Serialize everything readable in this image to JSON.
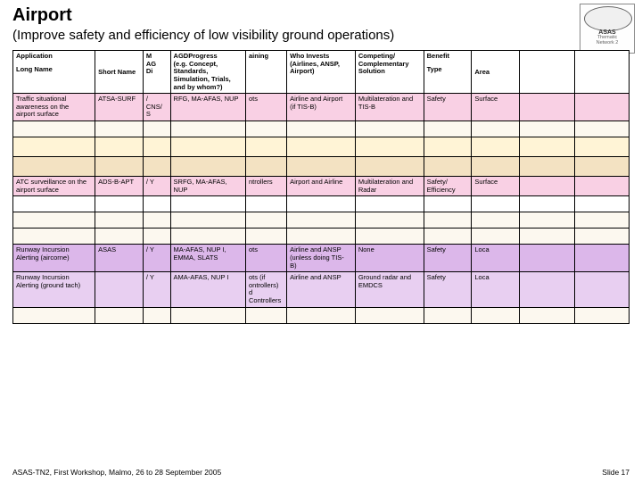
{
  "logo": {
    "main": "ASAS",
    "sub1": "Thematic",
    "sub2": "Network 2"
  },
  "title": "Airport",
  "subtitle": "(Improve safety and efficiency of low visibility ground operations)",
  "columns": {
    "app": "Application",
    "long": "Long Name",
    "short": "Short Name",
    "mag": "M\nAG\nDi",
    "prog": "AGDProgress\n(e.g. Concept,\nStandards,\nSimulation, Trials,\nand by whom?)",
    "train": "aining",
    "who": "Who Invests\n(Airlines, ANSP,\nAirport)",
    "comp": "Competing/\nComplementary\nSolution",
    "benefit": "Benefit",
    "type": "Type",
    "area": "Area",
    "x1": "",
    "x2": ""
  },
  "rows": [
    {
      "cls": "row-pink",
      "long": "Traffic situational\nawareness on the\nairport surface",
      "short": "ATSA-SURF",
      "mag": "/\nCNS/\nS",
      "prog": "RFG, MA-AFAS, NUP",
      "train": "ots",
      "who": "Airline and Airport\n(if TIS-B)",
      "comp": "Multilateration and\nTIS-B",
      "type": "Safety",
      "area": "Surface",
      "x1": "",
      "x2": ""
    },
    {
      "cls": "row-faded",
      "long": "",
      "short": "",
      "mag": "",
      "prog": "",
      "train": "",
      "who": "",
      "comp": "",
      "type": "",
      "area": "",
      "x1": "",
      "x2": ""
    },
    {
      "cls": "row-yellow",
      "long": "",
      "short": "",
      "mag": "",
      "prog": "",
      "train": "",
      "who": "",
      "comp": "",
      "type": "",
      "area": "",
      "x1": "",
      "x2": ""
    },
    {
      "cls": "row-tan",
      "long": "",
      "short": "",
      "mag": "",
      "prog": "",
      "train": "",
      "who": "",
      "comp": "",
      "type": "",
      "area": "",
      "x1": "",
      "x2": ""
    },
    {
      "cls": "row-pink",
      "long": "ATC surveillance on the\nairport surface",
      "short": "ADS-B-APT",
      "mag": "/ Y",
      "prog": "SRFG, MA-AFAS, NUP",
      "train": "ntrollers",
      "who": "Airport and Airline",
      "comp": "Multilateration and\nRadar",
      "type": "Safety/\nEfficiency",
      "area": "Surface",
      "x1": "",
      "x2": ""
    },
    {
      "cls": "row-plain",
      "long": "",
      "short": "",
      "mag": "",
      "prog": "",
      "train": "",
      "who": "",
      "comp": "",
      "type": "",
      "area": "",
      "x1": "",
      "x2": ""
    },
    {
      "cls": "row-faded",
      "long": "",
      "short": "",
      "mag": "",
      "prog": "",
      "train": "",
      "who": "",
      "comp": "",
      "type": "",
      "area": "",
      "x1": "",
      "x2": ""
    },
    {
      "cls": "row-faded",
      "long": "",
      "short": "",
      "mag": "",
      "prog": "",
      "train": "",
      "who": "",
      "comp": "",
      "type": "",
      "area": "",
      "x1": "",
      "x2": ""
    },
    {
      "cls": "row-violet",
      "long": "Runway Incursion\nAlerting (aircorne)",
      "short": "ASAS",
      "mag": "/ Y",
      "prog": "MA-AFAS, NUP I,\nEMMA, SLATS",
      "train": "ots",
      "who": "Airline and ANSP\n(unless doing TIS-\nB)",
      "comp": "None",
      "type": "Safety",
      "area": "Loca",
      "x1": "",
      "x2": ""
    },
    {
      "cls": "row-lilac",
      "long": "Runway Incursion\nAlerting (ground tach)",
      "short": "",
      "mag": "/ Y",
      "prog": "AMA-AFAS, NUP I",
      "train": "ots (if\nontrollers)\nd Controllers",
      "who": "Airline and ANSP",
      "comp": "Ground radar and\nEMDCS",
      "type": "Safety",
      "area": "Loca",
      "x1": "",
      "x2": ""
    },
    {
      "cls": "row-faded",
      "long": "",
      "short": "",
      "mag": "",
      "prog": "",
      "train": "",
      "who": "",
      "comp": "",
      "type": "",
      "area": "",
      "x1": "",
      "x2": ""
    }
  ],
  "footer": {
    "left": "ASAS-TN2, First Workshop, Malmo, 26 to 28 September 2005",
    "right": "Slide 17"
  },
  "colors": {
    "pink": "#f9d0e4",
    "yellow": "#fff4d6",
    "tan": "#f3e2c2",
    "violet": "#dcb7ea",
    "lilac": "#e8cff1",
    "border": "#000000"
  }
}
